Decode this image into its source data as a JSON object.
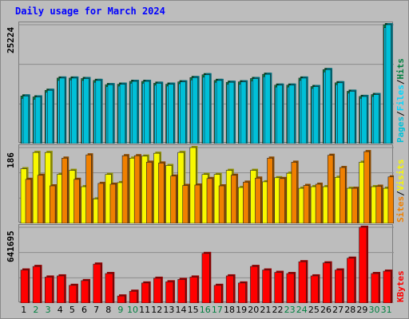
{
  "title": "Daily usage for March 2024",
  "colors": {
    "pages": "#00c0d8",
    "files": "#00d8ff",
    "hits": "#008040",
    "visits": "#f8f800",
    "sites": "#f08000",
    "kbytes": "#ff0000",
    "weekend_label": "#008040",
    "weekday_label": "#000000"
  },
  "chart_data": [
    {
      "type": "bar",
      "title": "Daily usage for March 2024",
      "categories": [
        "1",
        "2",
        "3",
        "4",
        "5",
        "6",
        "7",
        "8",
        "9",
        "10",
        "11",
        "12",
        "13",
        "14",
        "15",
        "16",
        "17",
        "18",
        "19",
        "20",
        "21",
        "22",
        "23",
        "24",
        "25",
        "26",
        "27",
        "28",
        "29",
        "30",
        "31"
      ],
      "weekend_days": [
        "2",
        "3",
        "9",
        "10",
        "16",
        "17",
        "23",
        "24",
        "30",
        "31"
      ],
      "ymax_label": "25224",
      "ylim": [
        0,
        25224
      ],
      "legend": [
        "Pages",
        "Files",
        "Hits"
      ],
      "series": [
        {
          "name": "Pages",
          "values": [
            10100,
            9900,
            11300,
            13900,
            13900,
            13800,
            13400,
            12500,
            12600,
            13200,
            13200,
            12800,
            12600,
            13100,
            14000,
            14600,
            13400,
            13000,
            13100,
            13800,
            14700,
            12400,
            12400,
            13900,
            12100,
            15700,
            12900,
            11100,
            10000,
            10400,
            25224
          ]
        },
        {
          "name": "Files",
          "values": [
            9600,
            9400,
            10900,
            13400,
            13500,
            13400,
            13000,
            12100,
            12200,
            12800,
            12800,
            12400,
            12200,
            12700,
            13500,
            14100,
            13000,
            12600,
            12600,
            13300,
            14200,
            12000,
            12000,
            13400,
            11700,
            15200,
            12500,
            10700,
            9600,
            10000,
            24600
          ]
        },
        {
          "name": "Hits",
          "values": [
            10100,
            9900,
            11300,
            13900,
            13900,
            13800,
            13400,
            12500,
            12600,
            13200,
            13200,
            12800,
            12600,
            13100,
            14000,
            14600,
            13400,
            13000,
            13100,
            13800,
            14700,
            12400,
            12400,
            13900,
            12100,
            15700,
            12900,
            11100,
            10000,
            10400,
            25224
          ]
        }
      ]
    },
    {
      "type": "bar",
      "ymax_label": "186",
      "ylim": [
        0,
        186
      ],
      "legend": [
        "Visits",
        "Sites"
      ],
      "series": [
        {
          "name": "Visits",
          "values": [
            134,
            174,
            174,
            120,
            130,
            90,
            60,
            120,
            100,
            160,
            165,
            172,
            142,
            174,
            186,
            120,
            120,
            130,
            88,
            130,
            102,
            112,
            123,
            86,
            90,
            90,
            113,
            86,
            150,
            90,
            86
          ]
        },
        {
          "name": "Sites",
          "values": [
            108,
            118,
            92,
            160,
            108,
            168,
            98,
            96,
            166,
            166,
            150,
            148,
            116,
            93,
            94,
            110,
            92,
            118,
            101,
            111,
            160,
            110,
            150,
            93,
            96,
            167,
            137,
            86,
            176,
            91,
            114
          ]
        }
      ]
    },
    {
      "type": "bar",
      "ymax_label": "641695",
      "ylim": [
        0,
        641695
      ],
      "legend": [
        "KBytes"
      ],
      "series": [
        {
          "name": "KBytes",
          "values": [
            280000,
            310000,
            220000,
            230000,
            150000,
            190000,
            330000,
            250000,
            60000,
            100000,
            170000,
            210000,
            180000,
            200000,
            220000,
            420000,
            150000,
            230000,
            170000,
            310000,
            280000,
            260000,
            250000,
            350000,
            230000,
            340000,
            280000,
            380000,
            641695,
            250000,
            270000
          ]
        }
      ]
    }
  ]
}
